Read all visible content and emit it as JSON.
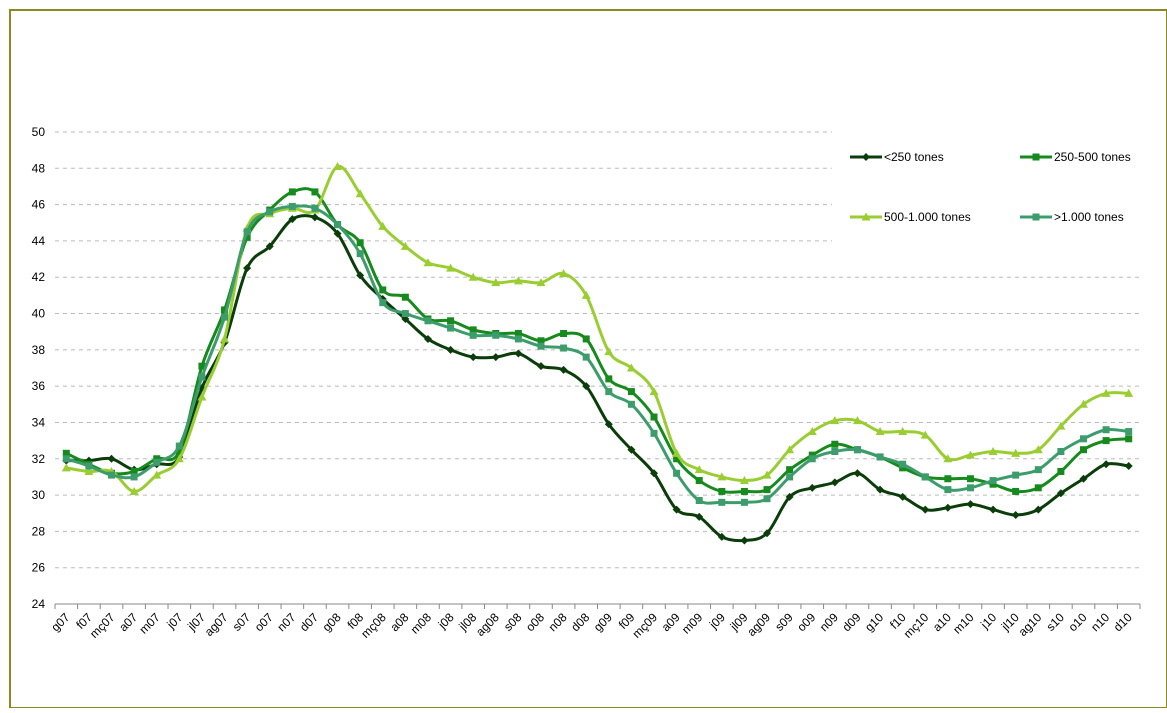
{
  "chart_data": {
    "type": "line",
    "categories": [
      "g07",
      "f07",
      "mç07",
      "a07",
      "m07",
      "j07",
      "jl07",
      "ag07",
      "s07",
      "o07",
      "n07",
      "d07",
      "g08",
      "f08",
      "mç08",
      "a08",
      "m08",
      "j08",
      "jl08",
      "ag08",
      "s08",
      "o08",
      "n08",
      "d08",
      "g09",
      "f09",
      "mç09",
      "a09",
      "m09",
      "j09",
      "jl09",
      "ag09",
      "s09",
      "o09",
      "n09",
      "d09",
      "g10",
      "f10",
      "mç10",
      "a10",
      "m10",
      "j10",
      "jl10",
      "ag10",
      "s10",
      "o10",
      "n10",
      "d10"
    ],
    "series": [
      {
        "name": "<250 tones",
        "color": "#0b3d0b",
        "marker": "diamond",
        "values": [
          31.9,
          31.9,
          32.0,
          31.4,
          31.7,
          32.1,
          35.9,
          38.4,
          42.5,
          43.7,
          45.2,
          45.3,
          44.4,
          42.1,
          40.8,
          39.7,
          38.6,
          38.0,
          37.6,
          37.6,
          37.8,
          37.1,
          36.9,
          36.0,
          33.9,
          32.5,
          31.2,
          29.2,
          28.8,
          27.7,
          27.5,
          27.9,
          29.9,
          30.4,
          30.7,
          31.2,
          30.3,
          29.9,
          29.2,
          29.3,
          29.5,
          29.2,
          28.9,
          29.2,
          30.1,
          30.9,
          31.7,
          31.6
        ]
      },
      {
        "name": "250-500 tones",
        "color": "#168a1c",
        "marker": "square",
        "values": [
          32.3,
          31.7,
          31.2,
          31.3,
          32.0,
          32.4,
          37.1,
          40.2,
          44.2,
          45.7,
          46.7,
          46.7,
          44.9,
          43.9,
          41.3,
          40.9,
          39.7,
          39.6,
          39.1,
          38.9,
          38.9,
          38.5,
          38.9,
          38.6,
          36.4,
          35.7,
          34.3,
          32.0,
          30.8,
          30.2,
          30.2,
          30.3,
          31.4,
          32.2,
          32.8,
          32.5,
          32.1,
          31.5,
          31.0,
          30.9,
          30.9,
          30.6,
          30.2,
          30.4,
          31.3,
          32.5,
          33.0,
          33.1
        ]
      },
      {
        "name": "500-1.000 tones",
        "color": "#9acd32",
        "marker": "triangle",
        "values": [
          31.5,
          31.3,
          31.3,
          30.2,
          31.1,
          32.0,
          35.4,
          38.6,
          44.7,
          45.5,
          45.8,
          45.7,
          48.1,
          46.6,
          44.8,
          43.7,
          42.8,
          42.5,
          42.0,
          41.7,
          41.8,
          41.7,
          42.2,
          41.0,
          37.9,
          37.0,
          35.7,
          32.3,
          31.4,
          31.0,
          30.8,
          31.1,
          32.5,
          33.5,
          34.1,
          34.1,
          33.5,
          33.5,
          33.3,
          32.0,
          32.2,
          32.4,
          32.3,
          32.5,
          33.8,
          35.0,
          35.6,
          35.6
        ]
      },
      {
        "name": ">1.000 tones",
        "color": "#3c9c6c",
        "marker": "square",
        "values": [
          32.0,
          31.6,
          31.1,
          31.0,
          31.8,
          32.7,
          36.5,
          39.8,
          44.5,
          45.6,
          45.9,
          45.8,
          44.9,
          43.3,
          40.6,
          40.0,
          39.6,
          39.2,
          38.8,
          38.8,
          38.6,
          38.2,
          38.1,
          37.6,
          35.7,
          35.0,
          33.4,
          31.2,
          29.7,
          29.6,
          29.6,
          29.8,
          31.0,
          32.0,
          32.4,
          32.5,
          32.1,
          31.7,
          31.0,
          30.3,
          30.4,
          30.8,
          31.1,
          31.4,
          32.4,
          33.1,
          33.6,
          33.5
        ]
      }
    ],
    "ylim": [
      24,
      50
    ],
    "yticks": [
      24,
      26,
      28,
      30,
      32,
      34,
      36,
      38,
      40,
      42,
      44,
      46,
      48,
      50
    ],
    "grid": true,
    "legend": "right"
  }
}
